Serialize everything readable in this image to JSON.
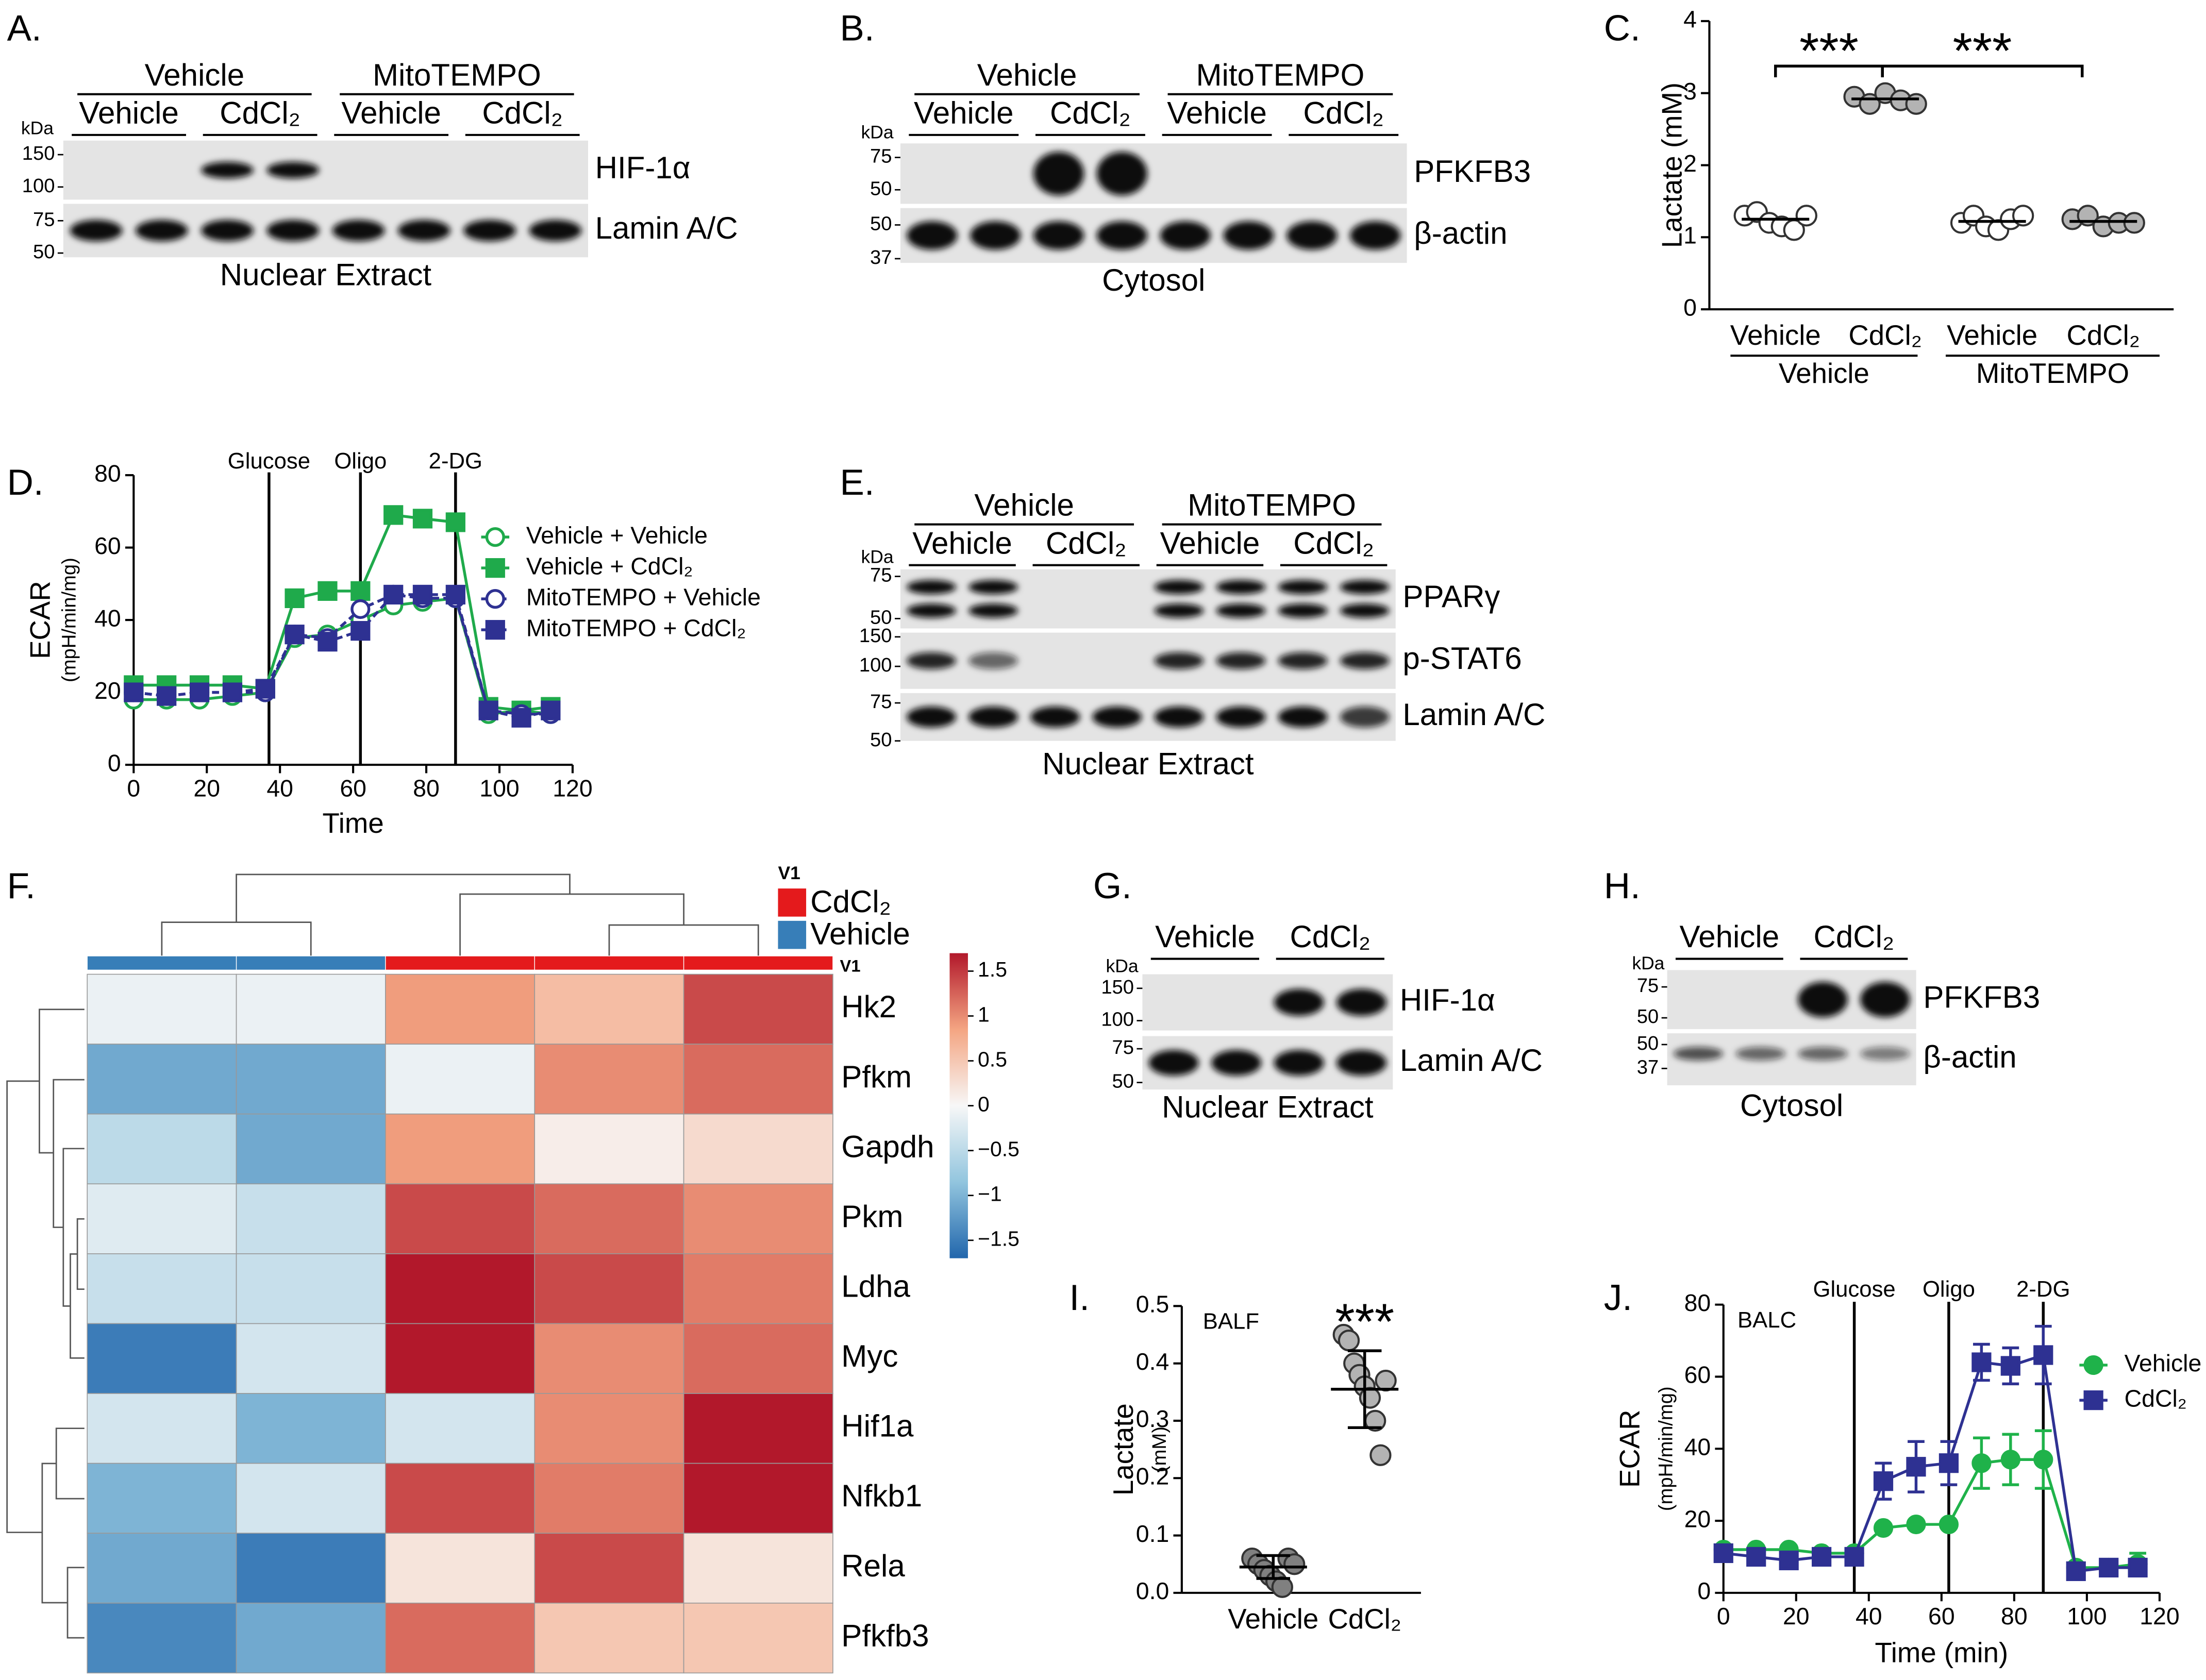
{
  "blots": [
    {
      "label": "A.",
      "groups": [
        "Vehicle",
        "MitoTEMPO"
      ],
      "lanes": [
        "Vehicle",
        "CdCl₂",
        "Vehicle",
        "CdCl₂"
      ],
      "unit": "kDa",
      "rows": [
        {
          "protein": "HIF-1α",
          "markers": [
            150,
            100
          ]
        },
        {
          "protein": "Lamin A/C",
          "markers": [
            75,
            50
          ]
        }
      ],
      "fraction": "Nuclear Extract"
    },
    {
      "label": "B.",
      "groups": [
        "Vehicle",
        "MitoTEMPO"
      ],
      "lanes": [
        "Vehicle",
        "CdCl₂",
        "Vehicle",
        "CdCl₂"
      ],
      "unit": "kDa",
      "rows": [
        {
          "protein": "PFKFB3",
          "markers": [
            75,
            50
          ]
        },
        {
          "protein": "β-actin",
          "markers": [
            50,
            37
          ]
        }
      ],
      "fraction": "Cytosol"
    },
    {
      "label": "E.",
      "groups": [
        "Vehicle",
        "MitoTEMPO"
      ],
      "lanes": [
        "Vehicle",
        "CdCl₂",
        "Vehicle",
        "CdCl₂"
      ],
      "unit": "kDa",
      "rows": [
        {
          "protein": "PPARγ",
          "markers": [
            75,
            50
          ]
        },
        {
          "protein": "p-STAT6",
          "markers": [
            150,
            100
          ]
        },
        {
          "protein": "Lamin A/C",
          "markers": [
            75,
            50
          ]
        }
      ],
      "fraction": "Nuclear Extract"
    },
    {
      "label": "G.",
      "lanes": [
        "Vehicle",
        "CdCl₂"
      ],
      "unit": "kDa",
      "rows": [
        {
          "protein": "HIF-1α",
          "markers": [
            150,
            100
          ]
        },
        {
          "protein": "Lamin A/C",
          "markers": [
            75,
            50
          ]
        }
      ],
      "fraction": "Nuclear Extract"
    },
    {
      "label": "H.",
      "lanes": [
        "Vehicle",
        "CdCl₂"
      ],
      "unit": "kDa",
      "rows": [
        {
          "protein": "PFKFB3",
          "markers": [
            75,
            50
          ]
        },
        {
          "protein": "β-actin",
          "markers": [
            50,
            37
          ]
        }
      ],
      "fraction": "Cytosol"
    }
  ],
  "chart_data": [
    {
      "type": "dot",
      "label": "C.",
      "ylabel": "Lactate (mM)",
      "ylim": [
        0,
        4
      ],
      "yticks": [
        0,
        1,
        2,
        3,
        4
      ],
      "categories": [
        "Vehicle",
        "CdCl₂",
        "Vehicle",
        "CdCl₂"
      ],
      "groups": [
        "Vehicle",
        "MitoTEMPO"
      ],
      "points": [
        [
          1.3,
          1.35,
          1.2,
          1.15,
          1.1,
          1.3
        ],
        [
          2.95,
          2.85,
          3.0,
          2.9,
          2.85
        ],
        [
          1.2,
          1.3,
          1.15,
          1.1,
          1.25,
          1.3
        ],
        [
          1.25,
          1.3,
          1.15,
          1.2,
          1.2
        ]
      ],
      "means": [
        1.25,
        2.92,
        1.22,
        1.22
      ],
      "colors": [
        "#ffffff",
        "#b3b3b3",
        "#ffffff",
        "#b3b3b3"
      ],
      "significance": [
        "***",
        "***"
      ]
    },
    {
      "type": "line",
      "label": "D.",
      "ylabel": "ECAR",
      "ylabel_unit": "(mpH/min/mg)",
      "xlabel": "Time",
      "x": [
        0,
        9,
        18,
        27,
        36,
        44,
        53,
        62,
        71,
        79,
        88,
        97,
        106,
        114
      ],
      "xlim": [
        0,
        120
      ],
      "xticks": [
        0,
        20,
        40,
        60,
        80,
        100,
        120
      ],
      "ylim": [
        0,
        80
      ],
      "yticks": [
        0,
        20,
        40,
        60,
        80
      ],
      "events": [
        {
          "label": "Glucose",
          "x": 37
        },
        {
          "label": "Oligo",
          "x": 62
        },
        {
          "label": "2-DG",
          "x": 88
        }
      ],
      "series": [
        {
          "name": "Vehicle + Vehicle",
          "color": "#1faa4b",
          "marker": "circle-open",
          "dash": false,
          "values": [
            18,
            18,
            18,
            19,
            20,
            35,
            36,
            40,
            44,
            45,
            46,
            14,
            15,
            14
          ]
        },
        {
          "name": "Vehicle + CdCl₂",
          "color": "#1faa4b",
          "marker": "square",
          "dash": false,
          "values": [
            22,
            22,
            22,
            22,
            21,
            46,
            48,
            48,
            69,
            68,
            67,
            16,
            15,
            16
          ]
        },
        {
          "name": "MitoTEMPO + Vehicle",
          "color": "#2e3192",
          "marker": "circle-open",
          "dash": true,
          "values": [
            20,
            19,
            20,
            20,
            20,
            36,
            35,
            43,
            47,
            46,
            46,
            15,
            14,
            14
          ]
        },
        {
          "name": "MitoTEMPO + CdCl₂",
          "color": "#2e3192",
          "marker": "square",
          "dash": true,
          "values": [
            20,
            19,
            20,
            20,
            21,
            36,
            34,
            37,
            47,
            47,
            47,
            15,
            13,
            15
          ]
        }
      ]
    },
    {
      "type": "heatmap",
      "label": "F.",
      "rows": [
        "Hk2",
        "Pfkm",
        "Gapdh",
        "Pkm",
        "Ldha",
        "Myc",
        "Hif1a",
        "Nfkb1",
        "Rela",
        "Pfkfb3"
      ],
      "columns": [
        "Vehicle",
        "Vehicle",
        "CdCl₂",
        "CdCl₂",
        "CdCl₂"
      ],
      "annotation_title": "V1",
      "annotation_row_label": "V1",
      "annotation_levels": [
        {
          "name": "CdCl₂",
          "color": "#e41a1c"
        },
        {
          "name": "Vehicle",
          "color": "#377eb8"
        }
      ],
      "values": [
        [
          -0.1,
          -0.1,
          0.9,
          0.6,
          1.4
        ],
        [
          -1.1,
          -1.1,
          -0.1,
          1.0,
          1.2
        ],
        [
          -0.5,
          -1.1,
          0.9,
          0.1,
          0.3
        ],
        [
          -0.2,
          -0.4,
          1.4,
          1.2,
          1.0
        ],
        [
          -0.4,
          -0.4,
          1.7,
          1.4,
          1.1
        ],
        [
          -1.5,
          -0.3,
          1.7,
          1.0,
          1.2
        ],
        [
          -0.3,
          -1.0,
          -0.3,
          1.0,
          1.7
        ],
        [
          -1.0,
          -0.3,
          1.4,
          1.1,
          1.7
        ],
        [
          -1.1,
          -1.5,
          0.2,
          1.4,
          0.2
        ],
        [
          -1.4,
          -1.1,
          1.2,
          0.5,
          0.5
        ]
      ],
      "clim": [
        -1.7,
        1.7
      ],
      "cticks": [
        1.5,
        1,
        0.5,
        0,
        {
          "value": -0.5,
          "label": "−0.5"
        },
        {
          "value": -1,
          "label": "−1"
        },
        {
          "value": -1.5,
          "label": "−1.5"
        }
      ]
    },
    {
      "type": "dot",
      "label": "I.",
      "ylabel": "Lactate",
      "ylabel_unit": "(mM)",
      "note": "BALF",
      "ylim": [
        0,
        0.5
      ],
      "yticks": [
        {
          "value": 0,
          "label": "0.0"
        },
        0.1,
        0.2,
        0.3,
        0.4,
        0.5
      ],
      "categories": [
        "Vehicle",
        "CdCl₂"
      ],
      "points": [
        [
          0.06,
          0.05,
          0.04,
          0.03,
          0.02,
          0.01,
          0.06,
          0.05
        ],
        [
          0.45,
          0.44,
          0.4,
          0.38,
          0.36,
          0.34,
          0.3,
          0.24,
          0.37
        ]
      ],
      "means": [
        0.045,
        0.355
      ],
      "sd": [
        0.02,
        0.067
      ],
      "colors": [
        "#808080",
        "#b3b3b3"
      ],
      "significance": [
        "***"
      ]
    },
    {
      "type": "line",
      "label": "J.",
      "ylabel": "ECAR",
      "ylabel_unit": "(mpH/min/mg)",
      "xlabel": "Time (min)",
      "note": "BALC",
      "x": [
        0,
        9,
        18,
        27,
        36,
        44,
        53,
        62,
        71,
        79,
        88,
        97,
        106,
        114
      ],
      "xlim": [
        0,
        120
      ],
      "xticks": [
        0,
        20,
        40,
        60,
        80,
        100,
        120
      ],
      "ylim": [
        0,
        80
      ],
      "yticks": [
        0,
        20,
        40,
        60,
        80
      ],
      "events": [
        {
          "label": "Glucose",
          "x": 36
        },
        {
          "label": "Oligo",
          "x": 62
        },
        {
          "label": "2-DG",
          "x": 88
        }
      ],
      "series": [
        {
          "name": "Vehicle",
          "color": "#1fb24a",
          "marker": "circle",
          "dash": false,
          "values": [
            12,
            12,
            12,
            11,
            11,
            18,
            19,
            19,
            36,
            37,
            37,
            7,
            7,
            8
          ],
          "errors": [
            1,
            1,
            1,
            1,
            1,
            1,
            1,
            1,
            7,
            7,
            8,
            1,
            1,
            3
          ]
        },
        {
          "name": "CdCl₂",
          "color": "#2e3192",
          "marker": "square",
          "dash": false,
          "values": [
            11,
            10,
            9,
            10,
            10,
            31,
            35,
            36,
            64,
            63,
            66,
            6,
            7,
            7
          ],
          "errors": [
            1,
            1,
            1,
            1,
            1,
            5,
            7,
            6,
            5,
            5,
            8,
            1,
            2,
            2
          ]
        }
      ]
    }
  ]
}
